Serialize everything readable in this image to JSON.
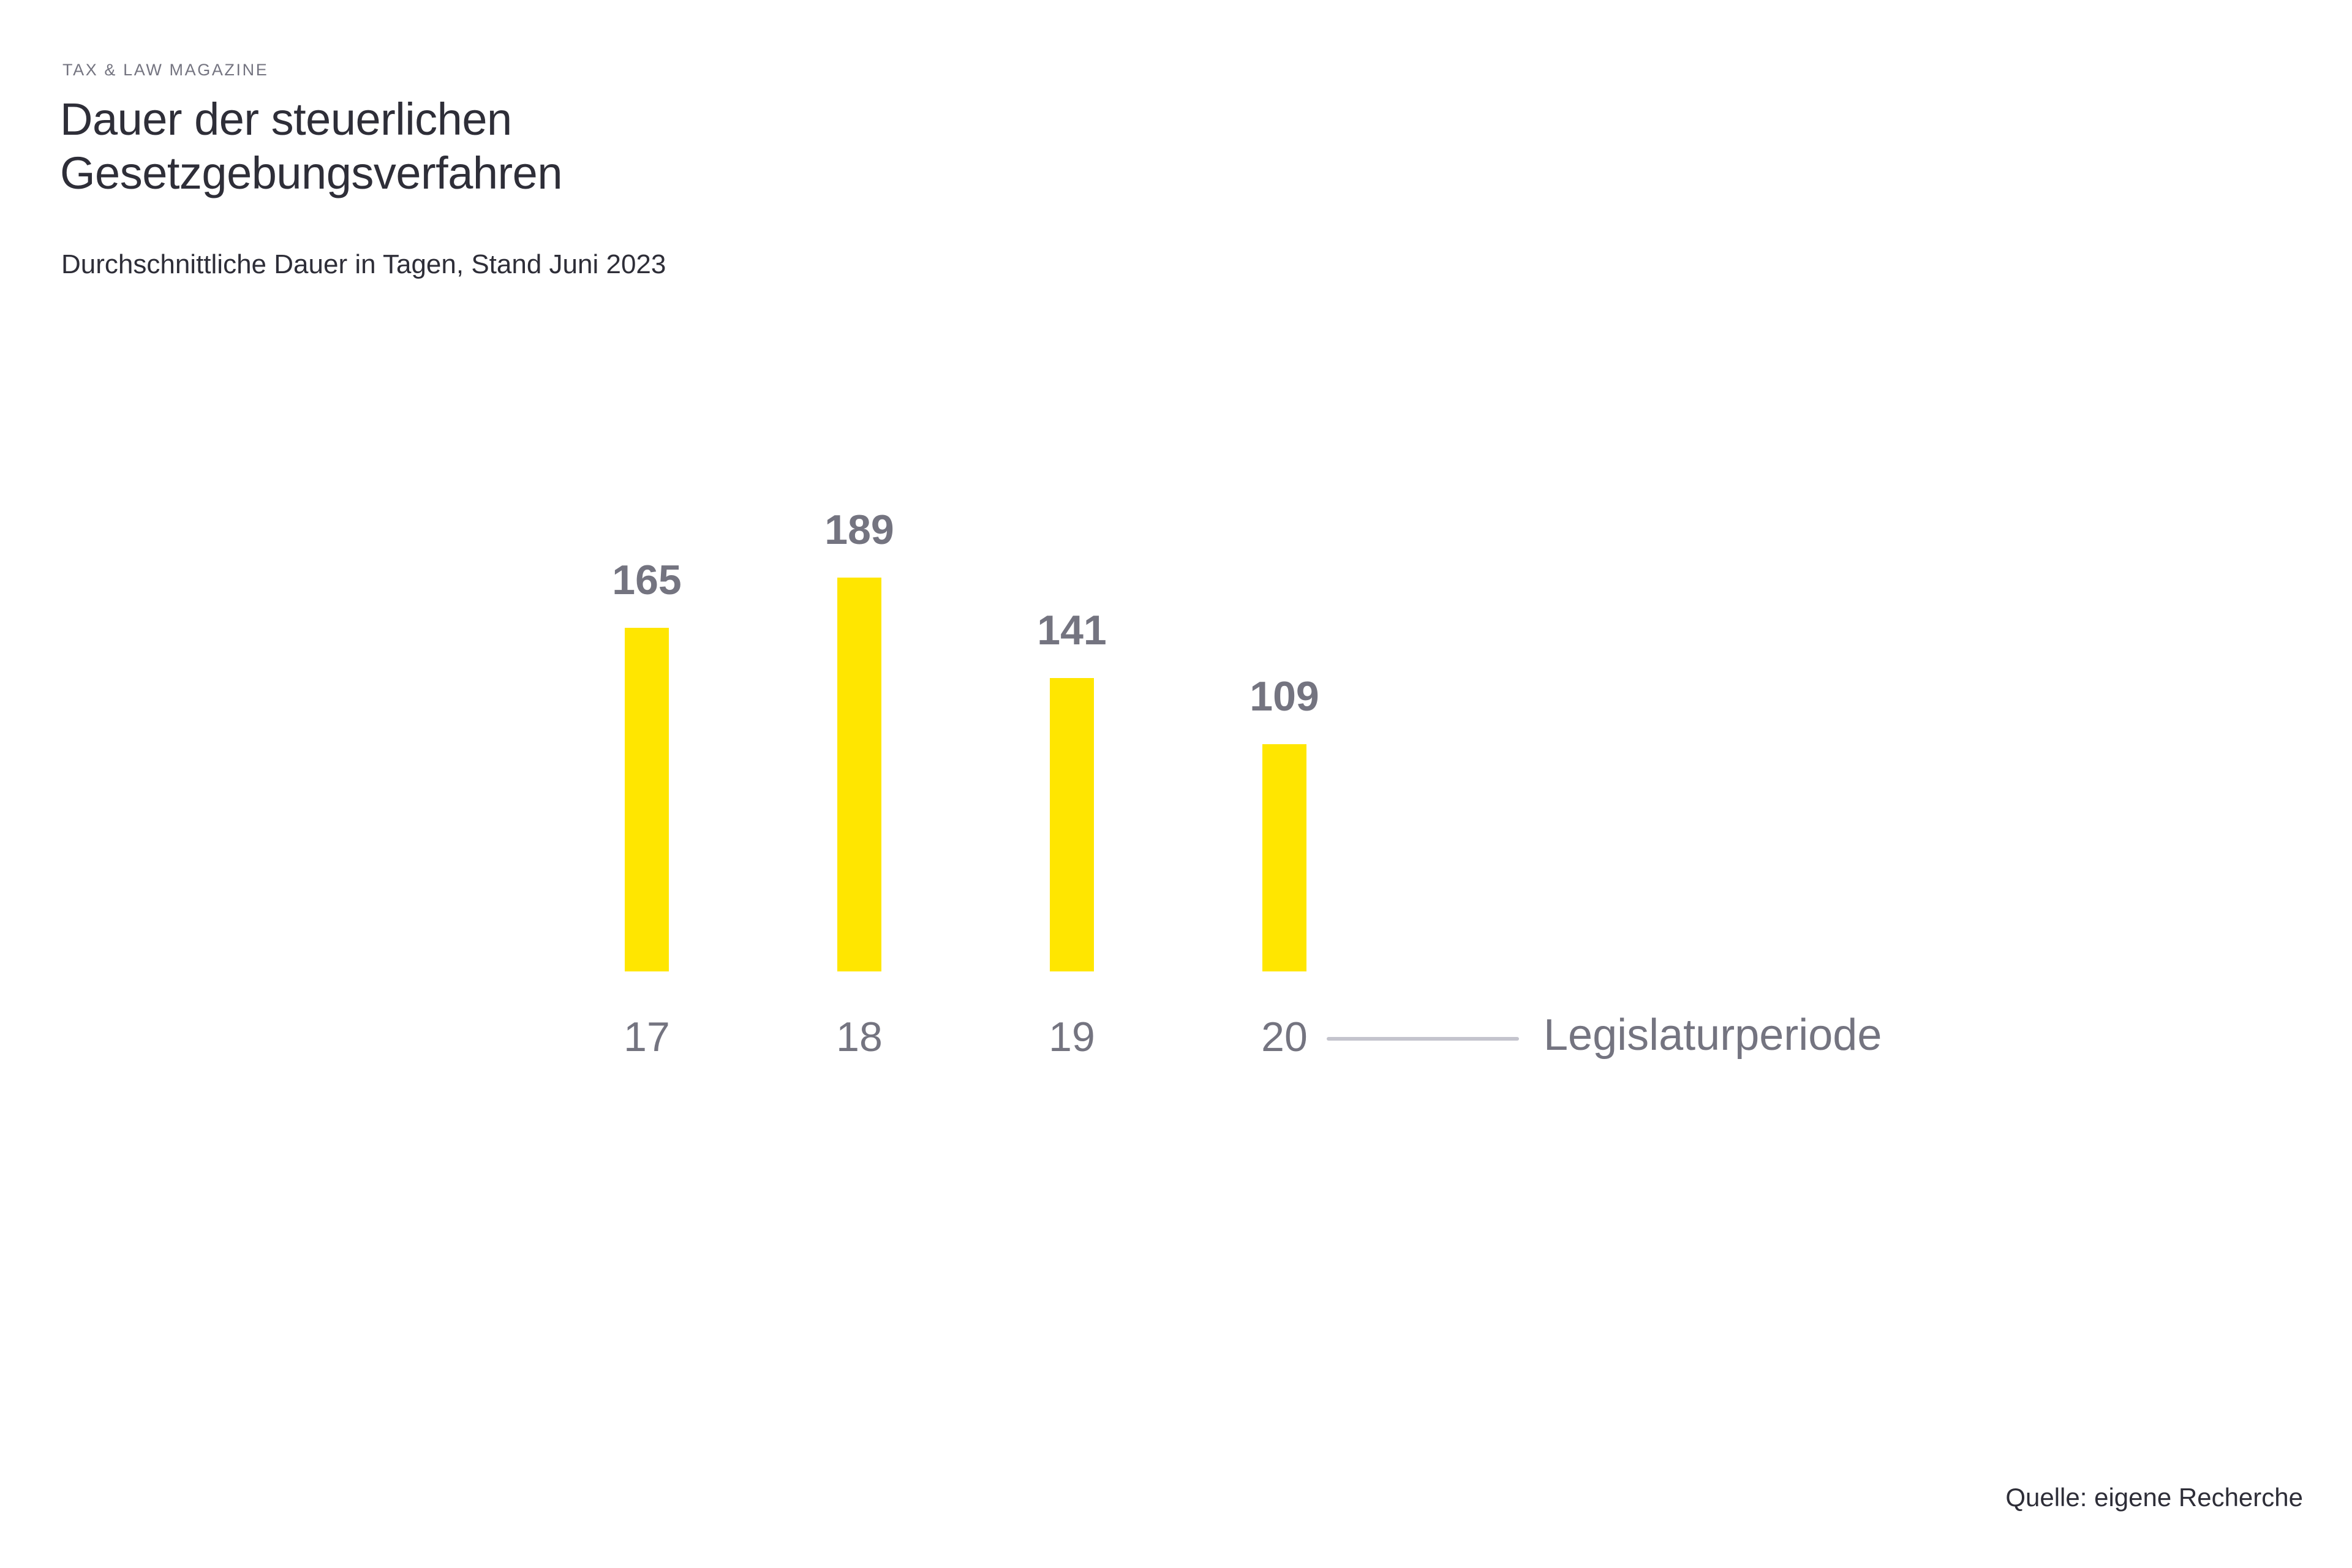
{
  "header": {
    "overline": "TAX & LAW MAGAZINE",
    "title": "Dauer der steuerlichen\nGesetzgebungsverfahren",
    "subtitle": "Durchschnittliche Dauer in Tagen, Stand Juni 2023"
  },
  "chart_data": {
    "type": "bar",
    "title": "Dauer der steuerlichen Gesetzgebungsverfahren",
    "subtitle": "Durchschnittliche Dauer in Tagen, Stand Juni 2023",
    "categories": [
      "17",
      "18",
      "19",
      "20"
    ],
    "values": [
      165,
      189,
      141,
      109
    ],
    "xlabel": "Legislaturperiode",
    "ylabel": "",
    "ylim": [
      0,
      189
    ],
    "grid": false,
    "legend_position": "none",
    "y_axis_visible": false,
    "value_labels_visible": true,
    "bar_color": "#ffe600",
    "value_label_color": "#747480",
    "category_label_color": "#747480",
    "connector_line_color": "#c4c4cd"
  },
  "footer": {
    "source": "Quelle: eigene Recherche"
  },
  "colors": {
    "background": "#ffffff",
    "accent_yellow": "#ffe600",
    "text_dark": "#2e2e38",
    "text_gray": "#747480",
    "line_gray": "#c4c4cd"
  }
}
